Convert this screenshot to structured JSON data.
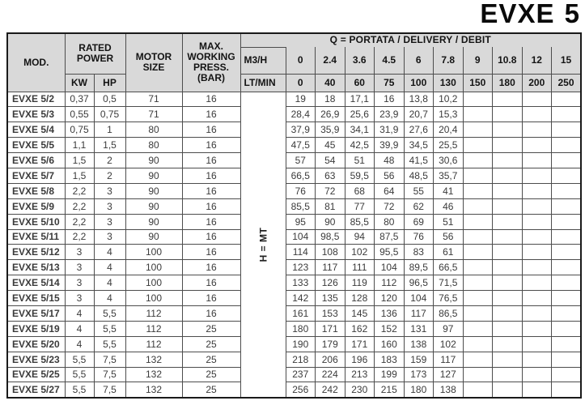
{
  "title": "EVXE 5",
  "table": {
    "headers": {
      "mod": "MOD.",
      "rated_power": "RATED POWER",
      "kw": "KW",
      "hp": "HP",
      "motor_size": "MOTOR SIZE",
      "max_press": "MAX. WORKING PRESS. (BAR)",
      "q_header": "Q = PORTATA / DELIVERY / DEBIT",
      "m3h_label": "M3/H",
      "ltmin_label": "LT/MIN",
      "h_mt": "H = MT"
    },
    "m3h_values": [
      "0",
      "2.4",
      "3.6",
      "4.5",
      "6",
      "7.8",
      "9",
      "10.8",
      "12",
      "15"
    ],
    "ltmin_values": [
      "0",
      "40",
      "60",
      "75",
      "100",
      "130",
      "150",
      "180",
      "200",
      "250"
    ],
    "rows": [
      {
        "mod": "EVXE 5/2",
        "kw": "0,37",
        "hp": "0,5",
        "motor": "71",
        "press": "16",
        "q": [
          "19",
          "18",
          "17,1",
          "16",
          "13,8",
          "10,2",
          "",
          "",
          "",
          ""
        ]
      },
      {
        "mod": "EVXE 5/3",
        "kw": "0,55",
        "hp": "0,75",
        "motor": "71",
        "press": "16",
        "q": [
          "28,4",
          "26,9",
          "25,6",
          "23,9",
          "20,7",
          "15,3",
          "",
          "",
          "",
          ""
        ]
      },
      {
        "mod": "EVXE 5/4",
        "kw": "0,75",
        "hp": "1",
        "motor": "80",
        "press": "16",
        "q": [
          "37,9",
          "35,9",
          "34,1",
          "31,9",
          "27,6",
          "20,4",
          "",
          "",
          "",
          ""
        ]
      },
      {
        "mod": "EVXE 5/5",
        "kw": "1,1",
        "hp": "1,5",
        "motor": "80",
        "press": "16",
        "q": [
          "47,5",
          "45",
          "42,5",
          "39,9",
          "34,5",
          "25,5",
          "",
          "",
          "",
          ""
        ]
      },
      {
        "mod": "EVXE 5/6",
        "kw": "1,5",
        "hp": "2",
        "motor": "90",
        "press": "16",
        "q": [
          "57",
          "54",
          "51",
          "48",
          "41,5",
          "30,6",
          "",
          "",
          "",
          ""
        ]
      },
      {
        "mod": "EVXE 5/7",
        "kw": "1,5",
        "hp": "2",
        "motor": "90",
        "press": "16",
        "q": [
          "66,5",
          "63",
          "59,5",
          "56",
          "48,5",
          "35,7",
          "",
          "",
          "",
          ""
        ]
      },
      {
        "mod": "EVXE 5/8",
        "kw": "2,2",
        "hp": "3",
        "motor": "90",
        "press": "16",
        "q": [
          "76",
          "72",
          "68",
          "64",
          "55",
          "41",
          "",
          "",
          "",
          ""
        ]
      },
      {
        "mod": "EVXE 5/9",
        "kw": "2,2",
        "hp": "3",
        "motor": "90",
        "press": "16",
        "q": [
          "85,5",
          "81",
          "77",
          "72",
          "62",
          "46",
          "",
          "",
          "",
          ""
        ]
      },
      {
        "mod": "EVXE 5/10",
        "kw": "2,2",
        "hp": "3",
        "motor": "90",
        "press": "16",
        "q": [
          "95",
          "90",
          "85,5",
          "80",
          "69",
          "51",
          "",
          "",
          "",
          ""
        ]
      },
      {
        "mod": "EVXE 5/11",
        "kw": "2,2",
        "hp": "3",
        "motor": "90",
        "press": "16",
        "q": [
          "104",
          "98,5",
          "94",
          "87,5",
          "76",
          "56",
          "",
          "",
          "",
          ""
        ]
      },
      {
        "mod": "EVXE 5/12",
        "kw": "3",
        "hp": "4",
        "motor": "100",
        "press": "16",
        "q": [
          "114",
          "108",
          "102",
          "95,5",
          "83",
          "61",
          "",
          "",
          "",
          ""
        ]
      },
      {
        "mod": "EVXE 5/13",
        "kw": "3",
        "hp": "4",
        "motor": "100",
        "press": "16",
        "q": [
          "123",
          "117",
          "111",
          "104",
          "89,5",
          "66,5",
          "",
          "",
          "",
          ""
        ]
      },
      {
        "mod": "EVXE 5/14",
        "kw": "3",
        "hp": "4",
        "motor": "100",
        "press": "16",
        "q": [
          "133",
          "126",
          "119",
          "112",
          "96,5",
          "71,5",
          "",
          "",
          "",
          ""
        ]
      },
      {
        "mod": "EVXE 5/15",
        "kw": "3",
        "hp": "4",
        "motor": "100",
        "press": "16",
        "q": [
          "142",
          "135",
          "128",
          "120",
          "104",
          "76,5",
          "",
          "",
          "",
          ""
        ]
      },
      {
        "mod": "EVXE 5/17",
        "kw": "4",
        "hp": "5,5",
        "motor": "112",
        "press": "16",
        "q": [
          "161",
          "153",
          "145",
          "136",
          "117",
          "86,5",
          "",
          "",
          "",
          ""
        ]
      },
      {
        "mod": "EVXE 5/19",
        "kw": "4",
        "hp": "5,5",
        "motor": "112",
        "press": "25",
        "q": [
          "180",
          "171",
          "162",
          "152",
          "131",
          "97",
          "",
          "",
          "",
          ""
        ]
      },
      {
        "mod": "EVXE 5/20",
        "kw": "4",
        "hp": "5,5",
        "motor": "112",
        "press": "25",
        "q": [
          "190",
          "179",
          "171",
          "160",
          "138",
          "102",
          "",
          "",
          "",
          ""
        ]
      },
      {
        "mod": "EVXE 5/23",
        "kw": "5,5",
        "hp": "7,5",
        "motor": "132",
        "press": "25",
        "q": [
          "218",
          "206",
          "196",
          "183",
          "159",
          "117",
          "",
          "",
          "",
          ""
        ]
      },
      {
        "mod": "EVXE 5/25",
        "kw": "5,5",
        "hp": "7,5",
        "motor": "132",
        "press": "25",
        "q": [
          "237",
          "224",
          "213",
          "199",
          "173",
          "127",
          "",
          "",
          "",
          ""
        ]
      },
      {
        "mod": "EVXE 5/27",
        "kw": "5,5",
        "hp": "7,5",
        "motor": "132",
        "press": "25",
        "q": [
          "256",
          "242",
          "230",
          "215",
          "180",
          "138",
          "",
          "",
          "",
          ""
        ]
      }
    ]
  }
}
